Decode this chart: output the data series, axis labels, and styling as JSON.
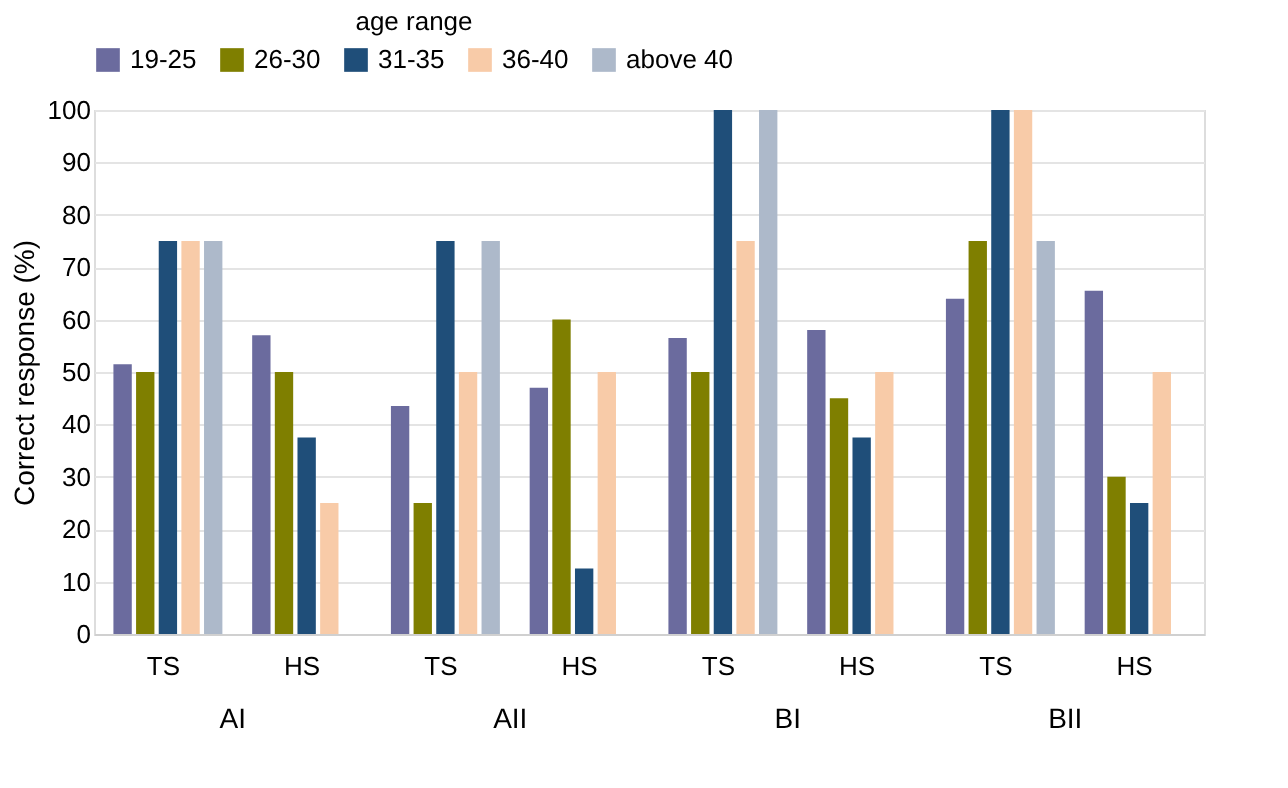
{
  "chart_data": {
    "type": "bar",
    "legend_title": "age range",
    "ylabel": "Correct response (%)",
    "categories": [
      "TS",
      "HS",
      "TS",
      "HS",
      "TS",
      "HS",
      "TS",
      "HS"
    ],
    "annotations": [
      "AI",
      "AII",
      "BI",
      "BII"
    ],
    "series": [
      {
        "name": "19-25",
        "color": "#6b6b9e",
        "values": [
          51.5,
          57,
          43.5,
          47,
          56.5,
          58,
          64,
          65.5
        ]
      },
      {
        "name": "26-30",
        "color": "#7f7f00",
        "values": [
          50,
          50,
          25,
          60,
          50,
          45,
          75,
          30
        ]
      },
      {
        "name": "31-35",
        "color": "#1f4e79",
        "values": [
          75,
          37.5,
          75,
          12.5,
          100,
          37.5,
          100,
          25
        ]
      },
      {
        "name": "36-40",
        "color": "#f8cba8",
        "values": [
          75,
          25,
          50,
          50,
          75,
          50,
          100,
          50
        ]
      },
      {
        "name": "above 40",
        "color": "#adb9ca",
        "values": [
          75,
          null,
          75,
          null,
          100,
          null,
          75,
          null
        ]
      }
    ],
    "ylim": [
      0,
      100
    ],
    "yticks": [
      0,
      10,
      20,
      30,
      40,
      50,
      60,
      70,
      80,
      90,
      100
    ],
    "grid": "y",
    "legend": "top"
  }
}
